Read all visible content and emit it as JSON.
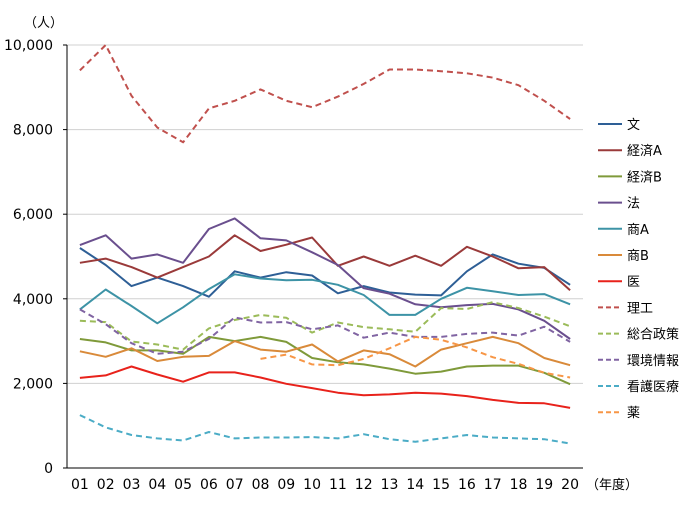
{
  "chart_data": {
    "type": "line",
    "title": "",
    "ylabel": "（人）",
    "xlabel": "（年度）",
    "ylim": [
      0,
      10000
    ],
    "y_ticks": [
      "0",
      "2,000",
      "4,000",
      "6,000",
      "8,000",
      "10,000"
    ],
    "y_tick_values": [
      0,
      2000,
      4000,
      6000,
      8000,
      10000
    ],
    "categories": [
      "01",
      "02",
      "03",
      "04",
      "05",
      "06",
      "07",
      "08",
      "09",
      "10",
      "11",
      "12",
      "13",
      "14",
      "15",
      "16",
      "17",
      "18",
      "19",
      "20"
    ],
    "grid": true,
    "legend_position": "right",
    "series": [
      {
        "name": "文",
        "color": "#2e5f96",
        "dash": "solid",
        "values": [
          5200,
          4800,
          4300,
          4500,
          4300,
          4050,
          4650,
          4500,
          4630,
          4550,
          4130,
          4300,
          4150,
          4100,
          4080,
          4650,
          5050,
          4830,
          4730,
          4330
        ]
      },
      {
        "name": "経済A",
        "color": "#9a3a3a",
        "dash": "solid",
        "values": [
          4850,
          4950,
          4750,
          4500,
          4750,
          5000,
          5500,
          5130,
          5280,
          5450,
          4780,
          5000,
          4780,
          5020,
          4780,
          5230,
          5000,
          4720,
          4750,
          4200
        ]
      },
      {
        "name": "経済B",
        "color": "#7f9a3a",
        "dash": "solid",
        "values": [
          3050,
          2970,
          2780,
          2780,
          2700,
          3100,
          3000,
          3100,
          2980,
          2600,
          2500,
          2450,
          2350,
          2230,
          2280,
          2400,
          2420,
          2420,
          2250,
          1980
        ]
      },
      {
        "name": "法",
        "color": "#6a4f8e",
        "dash": "solid",
        "values": [
          5270,
          5500,
          4950,
          5050,
          4850,
          5650,
          5900,
          5430,
          5380,
          5100,
          4800,
          4250,
          4120,
          3870,
          3800,
          3850,
          3880,
          3750,
          3480,
          3050
        ]
      },
      {
        "name": "商A",
        "color": "#3d93a6",
        "dash": "solid",
        "values": [
          3750,
          4220,
          3830,
          3420,
          3800,
          4230,
          4580,
          4480,
          4440,
          4450,
          4330,
          4090,
          3620,
          3620,
          4000,
          4260,
          4180,
          4090,
          4110,
          3870
        ]
      },
      {
        "name": "商B",
        "color": "#d98a3a",
        "dash": "solid",
        "values": [
          2760,
          2630,
          2830,
          2530,
          2630,
          2650,
          3000,
          2800,
          2750,
          2920,
          2520,
          2780,
          2690,
          2400,
          2800,
          2950,
          3100,
          2950,
          2600,
          2430
        ]
      },
      {
        "name": "医",
        "color": "#e8221b",
        "dash": "solid",
        "values": [
          2130,
          2190,
          2400,
          2210,
          2040,
          2260,
          2260,
          2140,
          1990,
          1890,
          1780,
          1720,
          1740,
          1780,
          1760,
          1700,
          1610,
          1540,
          1530,
          1420
        ]
      },
      {
        "name": "理工",
        "color": "#c0504d",
        "dash": "dashed",
        "values": [
          9400,
          10000,
          8800,
          8050,
          7700,
          8500,
          8680,
          8950,
          8680,
          8530,
          8780,
          9080,
          9420,
          9420,
          9380,
          9330,
          9230,
          9050,
          8680,
          8250
        ]
      },
      {
        "name": "総合政策",
        "color": "#9bbb59",
        "dash": "dashed",
        "values": [
          3480,
          3450,
          2990,
          2920,
          2800,
          3300,
          3500,
          3620,
          3550,
          3200,
          3440,
          3330,
          3280,
          3220,
          3780,
          3760,
          3920,
          3780,
          3580,
          3350
        ]
      },
      {
        "name": "環境情報",
        "color": "#8064a2",
        "dash": "dashed",
        "values": [
          3750,
          3400,
          2950,
          2700,
          2750,
          3050,
          3560,
          3440,
          3450,
          3280,
          3370,
          3080,
          3200,
          3100,
          3100,
          3170,
          3200,
          3130,
          3340,
          2980
        ]
      },
      {
        "name": "看護医療",
        "color": "#4bacc6",
        "dash": "dashed",
        "values": [
          1250,
          960,
          780,
          700,
          650,
          850,
          700,
          720,
          720,
          730,
          700,
          800,
          680,
          620,
          700,
          780,
          720,
          700,
          680,
          580
        ]
      },
      {
        "name": "薬",
        "color": "#f79646",
        "dash": "dashed",
        "values": [
          null,
          null,
          null,
          null,
          null,
          null,
          null,
          2580,
          2680,
          2450,
          2430,
          2580,
          2830,
          3100,
          3030,
          2850,
          2620,
          2460,
          2250,
          2140
        ]
      }
    ]
  }
}
